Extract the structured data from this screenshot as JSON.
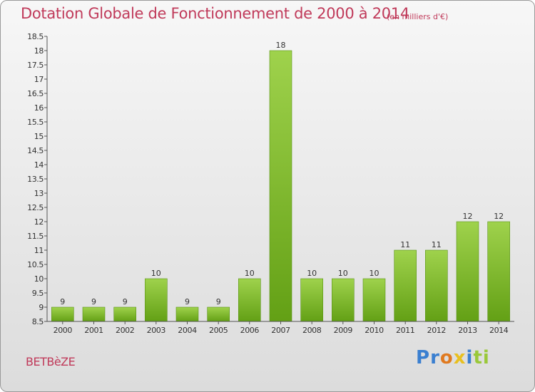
{
  "header": {
    "title": "Dotation Globale de Fonctionnement de 2000 à 2014",
    "subtitle": "(en milliers d'€)"
  },
  "footer": {
    "town": "BETBèZE",
    "logo": {
      "text": "Proxiti",
      "letters": [
        {
          "ch": "P",
          "color": "#3a7fd0"
        },
        {
          "ch": "r",
          "color": "#3a7fd0"
        },
        {
          "ch": "o",
          "color": "#e07a20"
        },
        {
          "ch": "x",
          "color": "#e8c020"
        },
        {
          "ch": "i",
          "color": "#3a7fd0"
        },
        {
          "ch": "t",
          "color": "#9ac83a"
        },
        {
          "ch": "i",
          "color": "#9ac83a"
        }
      ]
    }
  },
  "colors": {
    "title": "#c03a5a",
    "bar_top": "#9fd24c",
    "bar_bottom": "#63a015",
    "axis": "#555555"
  },
  "chart_data": {
    "type": "bar",
    "title": "Dotation Globale de Fonctionnement de 2000 à 2014",
    "subtitle": "(en milliers d'€)",
    "categories": [
      "2000",
      "2001",
      "2002",
      "2003",
      "2004",
      "2005",
      "2006",
      "2007",
      "2008",
      "2009",
      "2010",
      "2011",
      "2012",
      "2013",
      "2014"
    ],
    "values": [
      9,
      9,
      9,
      10,
      9,
      9,
      10,
      18,
      10,
      10,
      10,
      11,
      11,
      12,
      12
    ],
    "value_labels": [
      "9",
      "9",
      "9",
      "10",
      "9",
      "9",
      "10",
      "18",
      "10",
      "10",
      "10",
      "11",
      "11",
      "12",
      "12"
    ],
    "ylim": [
      8.5,
      18.5
    ],
    "yticks": [
      8.5,
      9,
      9.5,
      10,
      10.5,
      11,
      11.5,
      12,
      12.5,
      13,
      13.5,
      14,
      14.5,
      15,
      15.5,
      16,
      16.5,
      17,
      17.5,
      18,
      18.5
    ],
    "ytick_labels": [
      "8.5",
      "9",
      "9.5",
      "10",
      "10.5",
      "11",
      "11.5",
      "12",
      "12.5",
      "13",
      "13.5",
      "14",
      "14.5",
      "15",
      "15.5",
      "16",
      "16.5",
      "17",
      "17.5",
      "18",
      "18.5"
    ],
    "xlabel": "",
    "ylabel": "",
    "grid": false,
    "legend": "none"
  }
}
